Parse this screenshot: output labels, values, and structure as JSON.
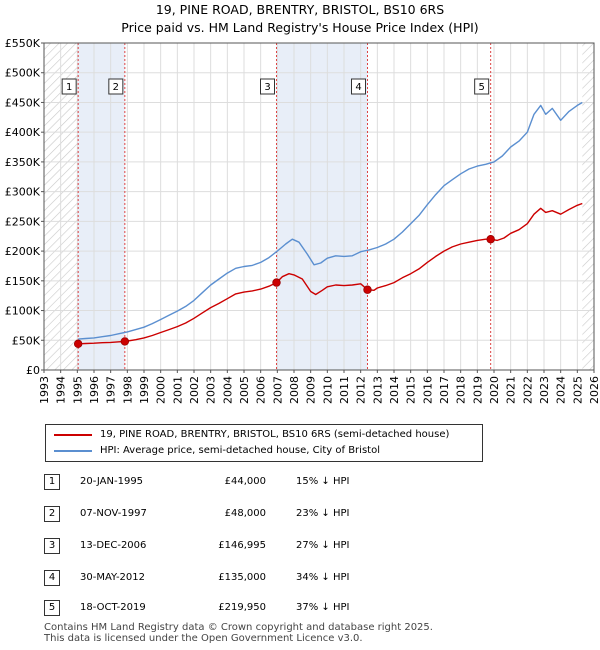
{
  "title_line1": "19, PINE ROAD, BRENTRY, BRISTOL, BS10 6RS",
  "title_line2": "Price paid vs. HM Land Registry's House Price Index (HPI)",
  "chart_data": {
    "type": "line",
    "title": "19, PINE ROAD, BRENTRY, BRISTOL, BS10 6RS — Price paid vs. HM Land Registry's House Price Index (HPI)",
    "xlim": [
      1993,
      2026
    ],
    "ylim": [
      0,
      550000
    ],
    "x_ticks": [
      1993,
      1994,
      1995,
      1996,
      1997,
      1998,
      1999,
      2000,
      2001,
      2002,
      2003,
      2004,
      2005,
      2006,
      2007,
      2008,
      2009,
      2010,
      2011,
      2012,
      2013,
      2014,
      2015,
      2016,
      2017,
      2018,
      2019,
      2020,
      2021,
      2022,
      2023,
      2024,
      2025,
      2026
    ],
    "y_ticks": [
      0,
      50000,
      100000,
      150000,
      200000,
      250000,
      300000,
      350000,
      400000,
      450000,
      500000,
      550000
    ],
    "y_tick_labels": [
      "£0",
      "£50K",
      "£100K",
      "£150K",
      "£200K",
      "£250K",
      "£300K",
      "£350K",
      "£400K",
      "£450K",
      "£500K",
      "£550K"
    ],
    "hatch_before": 1995.05,
    "hatch_after": 2025.3,
    "colors": {
      "price": "#cc0000",
      "hpi": "#5b8fd0",
      "shade": "#e8eef8",
      "marker_box": "#333333",
      "vline": "#dd4444"
    },
    "series": [
      {
        "name": "19, PINE ROAD, BRENTRY, BRISTOL, BS10 6RS (semi-detached house)",
        "color": "#cc0000",
        "points": [
          [
            1995.05,
            44000
          ],
          [
            1995.5,
            44500
          ],
          [
            1996,
            45000
          ],
          [
            1996.5,
            46000
          ],
          [
            1997,
            46500
          ],
          [
            1997.5,
            47500
          ],
          [
            1997.85,
            48000
          ],
          [
            1998.5,
            51000
          ],
          [
            1999,
            54000
          ],
          [
            1999.5,
            58000
          ],
          [
            2000,
            63000
          ],
          [
            2000.5,
            68000
          ],
          [
            2001,
            73000
          ],
          [
            2001.5,
            79000
          ],
          [
            2002,
            87000
          ],
          [
            2002.5,
            96000
          ],
          [
            2003,
            105000
          ],
          [
            2003.5,
            112000
          ],
          [
            2004,
            120000
          ],
          [
            2004.5,
            128000
          ],
          [
            2005,
            131000
          ],
          [
            2005.5,
            133000
          ],
          [
            2006,
            136000
          ],
          [
            2006.5,
            141000
          ],
          [
            2006.95,
            146995
          ],
          [
            2007.3,
            157000
          ],
          [
            2007.7,
            162000
          ],
          [
            2008,
            160000
          ],
          [
            2008.5,
            153000
          ],
          [
            2009,
            132000
          ],
          [
            2009.3,
            127000
          ],
          [
            2009.7,
            134000
          ],
          [
            2010,
            140000
          ],
          [
            2010.5,
            143000
          ],
          [
            2011,
            142000
          ],
          [
            2011.5,
            143000
          ],
          [
            2012,
            145000
          ],
          [
            2012.41,
            135000
          ],
          [
            2012.8,
            134000
          ],
          [
            2013,
            138000
          ],
          [
            2013.5,
            142000
          ],
          [
            2014,
            147000
          ],
          [
            2014.5,
            155000
          ],
          [
            2015,
            162000
          ],
          [
            2015.5,
            170000
          ],
          [
            2016,
            181000
          ],
          [
            2016.5,
            191000
          ],
          [
            2017,
            200000
          ],
          [
            2017.5,
            207000
          ],
          [
            2018,
            212000
          ],
          [
            2018.5,
            215000
          ],
          [
            2019,
            218000
          ],
          [
            2019.5,
            220000
          ],
          [
            2019.8,
            219950
          ],
          [
            2020.2,
            218000
          ],
          [
            2020.6,
            222000
          ],
          [
            2021,
            230000
          ],
          [
            2021.5,
            236000
          ],
          [
            2022,
            246000
          ],
          [
            2022.4,
            262000
          ],
          [
            2022.8,
            272000
          ],
          [
            2023.1,
            265000
          ],
          [
            2023.5,
            268000
          ],
          [
            2024,
            262000
          ],
          [
            2024.5,
            270000
          ],
          [
            2025,
            277000
          ],
          [
            2025.3,
            280000
          ]
        ]
      },
      {
        "name": "HPI: Average price, semi-detached house, City of Bristol",
        "color": "#5b8fd0",
        "points": [
          [
            1995.05,
            52000
          ],
          [
            1995.5,
            53000
          ],
          [
            1996,
            54000
          ],
          [
            1996.5,
            56000
          ],
          [
            1997,
            58000
          ],
          [
            1997.5,
            61000
          ],
          [
            1998,
            64000
          ],
          [
            1998.5,
            68000
          ],
          [
            1999,
            72000
          ],
          [
            1999.5,
            78000
          ],
          [
            2000,
            85000
          ],
          [
            2000.5,
            92000
          ],
          [
            2001,
            99000
          ],
          [
            2001.5,
            107000
          ],
          [
            2002,
            117000
          ],
          [
            2002.5,
            130000
          ],
          [
            2003,
            143000
          ],
          [
            2003.5,
            153000
          ],
          [
            2004,
            163000
          ],
          [
            2004.5,
            171000
          ],
          [
            2005,
            174000
          ],
          [
            2005.5,
            176000
          ],
          [
            2006,
            181000
          ],
          [
            2006.5,
            189000
          ],
          [
            2007,
            200000
          ],
          [
            2007.5,
            212000
          ],
          [
            2007.9,
            220000
          ],
          [
            2008.3,
            215000
          ],
          [
            2008.8,
            195000
          ],
          [
            2009.2,
            177000
          ],
          [
            2009.6,
            180000
          ],
          [
            2010,
            188000
          ],
          [
            2010.5,
            192000
          ],
          [
            2011,
            191000
          ],
          [
            2011.5,
            192000
          ],
          [
            2012,
            199000
          ],
          [
            2012.5,
            202000
          ],
          [
            2013,
            206000
          ],
          [
            2013.5,
            212000
          ],
          [
            2014,
            220000
          ],
          [
            2014.5,
            232000
          ],
          [
            2015,
            246000
          ],
          [
            2015.5,
            260000
          ],
          [
            2016,
            278000
          ],
          [
            2016.5,
            295000
          ],
          [
            2017,
            310000
          ],
          [
            2017.5,
            320000
          ],
          [
            2018,
            330000
          ],
          [
            2018.5,
            338000
          ],
          [
            2019,
            343000
          ],
          [
            2019.5,
            346000
          ],
          [
            2020,
            350000
          ],
          [
            2020.5,
            360000
          ],
          [
            2021,
            375000
          ],
          [
            2021.5,
            385000
          ],
          [
            2022,
            400000
          ],
          [
            2022.4,
            430000
          ],
          [
            2022.8,
            445000
          ],
          [
            2023.1,
            430000
          ],
          [
            2023.5,
            440000
          ],
          [
            2024,
            420000
          ],
          [
            2024.5,
            435000
          ],
          [
            2025,
            445000
          ],
          [
            2025.3,
            450000
          ]
        ]
      }
    ],
    "sales": [
      {
        "num": "1",
        "x": 1995.05,
        "price": 44000
      },
      {
        "num": "2",
        "x": 1997.85,
        "price": 48000
      },
      {
        "num": "3",
        "x": 2006.95,
        "price": 146995
      },
      {
        "num": "4",
        "x": 2012.41,
        "price": 135000
      },
      {
        "num": "5",
        "x": 2019.8,
        "price": 219950
      }
    ],
    "shaded_spans": [
      [
        1995.05,
        1997.85
      ],
      [
        2006.95,
        2012.41
      ]
    ],
    "legend": [
      "19, PINE ROAD, BRENTRY, BRISTOL, BS10 6RS (semi-detached house)",
      "HPI: Average price, semi-detached house, City of Bristol"
    ]
  },
  "sales_table": [
    {
      "num": "1",
      "date": "20-JAN-1995",
      "price": "£44,000",
      "hpi": "15% ↓ HPI"
    },
    {
      "num": "2",
      "date": "07-NOV-1997",
      "price": "£48,000",
      "hpi": "23% ↓ HPI"
    },
    {
      "num": "3",
      "date": "13-DEC-2006",
      "price": "£146,995",
      "hpi": "27% ↓ HPI"
    },
    {
      "num": "4",
      "date": "30-MAY-2012",
      "price": "£135,000",
      "hpi": "34% ↓ HPI"
    },
    {
      "num": "5",
      "date": "18-OCT-2019",
      "price": "£219,950",
      "hpi": "37% ↓ HPI"
    }
  ],
  "footer": {
    "line1": "Contains HM Land Registry data © Crown copyright and database right 2025.",
    "line2": "This data is licensed under the Open Government Licence v3.0."
  }
}
